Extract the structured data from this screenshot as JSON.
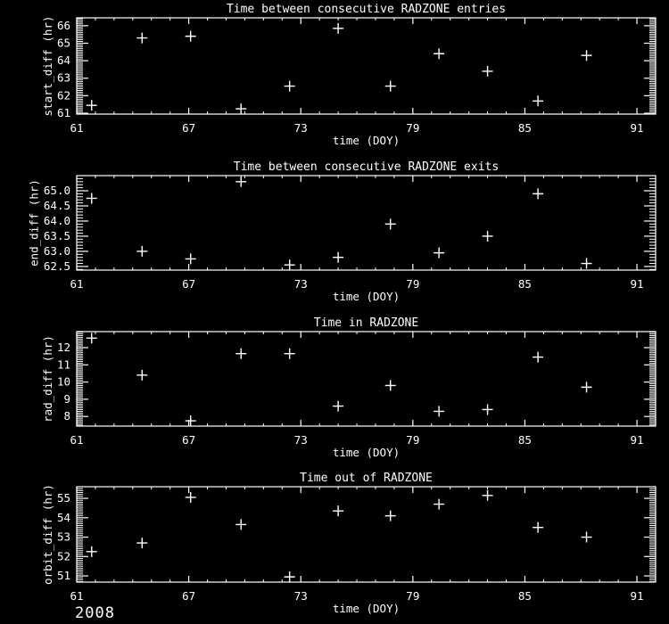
{
  "page": {
    "background": "#000000",
    "foreground": "#ffffff",
    "footer_year": "2008"
  },
  "chart_data": [
    {
      "type": "scatter",
      "title": "Time between consecutive RADZONE entries",
      "xlabel": "time (DOY)",
      "ylabel": "start_diff (hr)",
      "marker": "plus",
      "grid": false,
      "xlim": [
        61,
        92
      ],
      "ylim": [
        60.95,
        66.45
      ],
      "xticks": [
        61,
        67,
        73,
        79,
        85,
        91
      ],
      "x_minor_step": 1,
      "ytick_vals": [
        61,
        62,
        63,
        64,
        65,
        66
      ],
      "ytick_labels": [
        "61",
        "62",
        "63",
        "64",
        "65",
        "66"
      ],
      "y_minor_step": 0.1,
      "x": [
        61.8,
        64.5,
        67.1,
        69.8,
        72.4,
        75.0,
        77.8,
        80.4,
        83.0,
        85.7,
        88.3
      ],
      "y": [
        61.45,
        65.3,
        65.4,
        61.25,
        62.55,
        65.85,
        62.55,
        64.4,
        63.4,
        61.7,
        64.3
      ]
    },
    {
      "type": "scatter",
      "title": "Time between consecutive RADZONE exits",
      "xlabel": "time (DOY)",
      "ylabel": "end_diff (hr)",
      "marker": "plus",
      "grid": false,
      "xlim": [
        61,
        92
      ],
      "ylim": [
        62.38,
        65.5
      ],
      "xticks": [
        61,
        67,
        73,
        79,
        85,
        91
      ],
      "x_minor_step": 1,
      "ytick_vals": [
        62.5,
        63.0,
        63.5,
        64.0,
        64.5,
        65.0
      ],
      "ytick_labels": [
        "62.5",
        "63.0",
        "63.5",
        "64.0",
        "64.5",
        "65.0"
      ],
      "y_minor_step": 0.1,
      "x": [
        61.8,
        64.5,
        67.1,
        69.8,
        72.4,
        75.0,
        77.8,
        80.4,
        83.0,
        85.7,
        88.3
      ],
      "y": [
        64.75,
        63.0,
        62.75,
        65.3,
        62.55,
        62.8,
        63.9,
        62.95,
        63.5,
        64.9,
        62.6
      ]
    },
    {
      "type": "scatter",
      "title": "Time in RADZONE",
      "xlabel": "time (DOY)",
      "ylabel": "rad_diff (hr)",
      "marker": "plus",
      "grid": false,
      "xlim": [
        61,
        92
      ],
      "ylim": [
        7.44,
        12.93
      ],
      "xticks": [
        61,
        67,
        73,
        79,
        85,
        91
      ],
      "x_minor_step": 1,
      "ytick_vals": [
        8,
        9,
        10,
        11,
        12
      ],
      "ytick_labels": [
        "8",
        "9",
        "10",
        "11",
        "12"
      ],
      "y_minor_step": 0.1,
      "x": [
        61.8,
        64.5,
        67.1,
        69.8,
        72.4,
        75.0,
        77.8,
        80.4,
        83.0,
        85.7,
        88.3
      ],
      "y": [
        12.55,
        10.4,
        7.75,
        11.65,
        11.65,
        8.6,
        9.8,
        8.3,
        8.4,
        11.45,
        9.7
      ]
    },
    {
      "type": "scatter",
      "title": "Time out of RADZONE",
      "xlabel": "time (DOY)",
      "ylabel": "orbit_diff (hr)",
      "marker": "plus",
      "grid": false,
      "xlim": [
        61,
        92
      ],
      "ylim": [
        50.68,
        55.6
      ],
      "xticks": [
        61,
        67,
        73,
        79,
        85,
        91
      ],
      "x_minor_step": 1,
      "ytick_vals": [
        51,
        52,
        53,
        54,
        55
      ],
      "ytick_labels": [
        "51",
        "52",
        "53",
        "54",
        "55"
      ],
      "y_minor_step": 0.1,
      "x": [
        61.8,
        64.5,
        67.1,
        69.8,
        72.4,
        75.0,
        77.8,
        80.4,
        83.0,
        85.7,
        88.3
      ],
      "y": [
        52.25,
        52.7,
        55.05,
        53.65,
        50.95,
        54.35,
        54.1,
        54.7,
        55.15,
        53.5,
        53.0
      ]
    }
  ]
}
